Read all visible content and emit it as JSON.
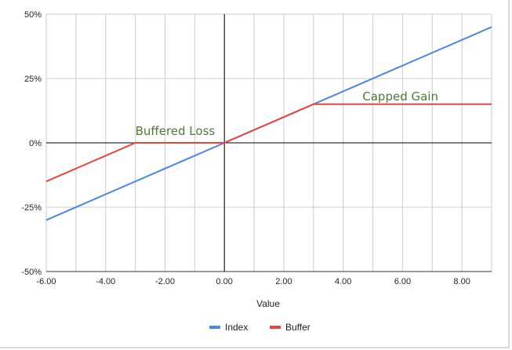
{
  "chart_data": {
    "type": "line",
    "title": "",
    "xlabel": "Value",
    "ylabel": "",
    "xlim": [
      -6,
      9
    ],
    "ylim": [
      -0.5,
      0.5
    ],
    "x_ticks": [
      -6,
      -4,
      -2,
      0,
      2,
      4,
      6,
      8
    ],
    "x_tick_labels": [
      "-6.00",
      "-4.00",
      "-2.00",
      "0.00",
      "2.00",
      "4.00",
      "6.00",
      "8.00"
    ],
    "y_ticks": [
      0.5,
      0.25,
      0,
      -0.25,
      -0.5
    ],
    "y_tick_labels": [
      "50%",
      "25%",
      "0%",
      "-25%",
      "-50%"
    ],
    "grid": true,
    "legend_position": "bottom",
    "series": [
      {
        "name": "Index",
        "color": "#4a86e8",
        "x": [
          -6,
          9
        ],
        "y": [
          -0.3,
          0.45
        ]
      },
      {
        "name": "Buffer",
        "color": "#e8453c",
        "x": [
          -6,
          -3,
          0,
          3,
          9
        ],
        "y": [
          -0.15,
          0,
          0,
          0.15,
          0.15
        ]
      }
    ],
    "annotations": [
      {
        "text": "Buffered Loss",
        "x": -3.0,
        "y": 0.03,
        "color": "#4e7a34"
      },
      {
        "text": "Capped Gain",
        "x": 4.65,
        "y": 0.165,
        "color": "#4e7a34"
      }
    ]
  }
}
